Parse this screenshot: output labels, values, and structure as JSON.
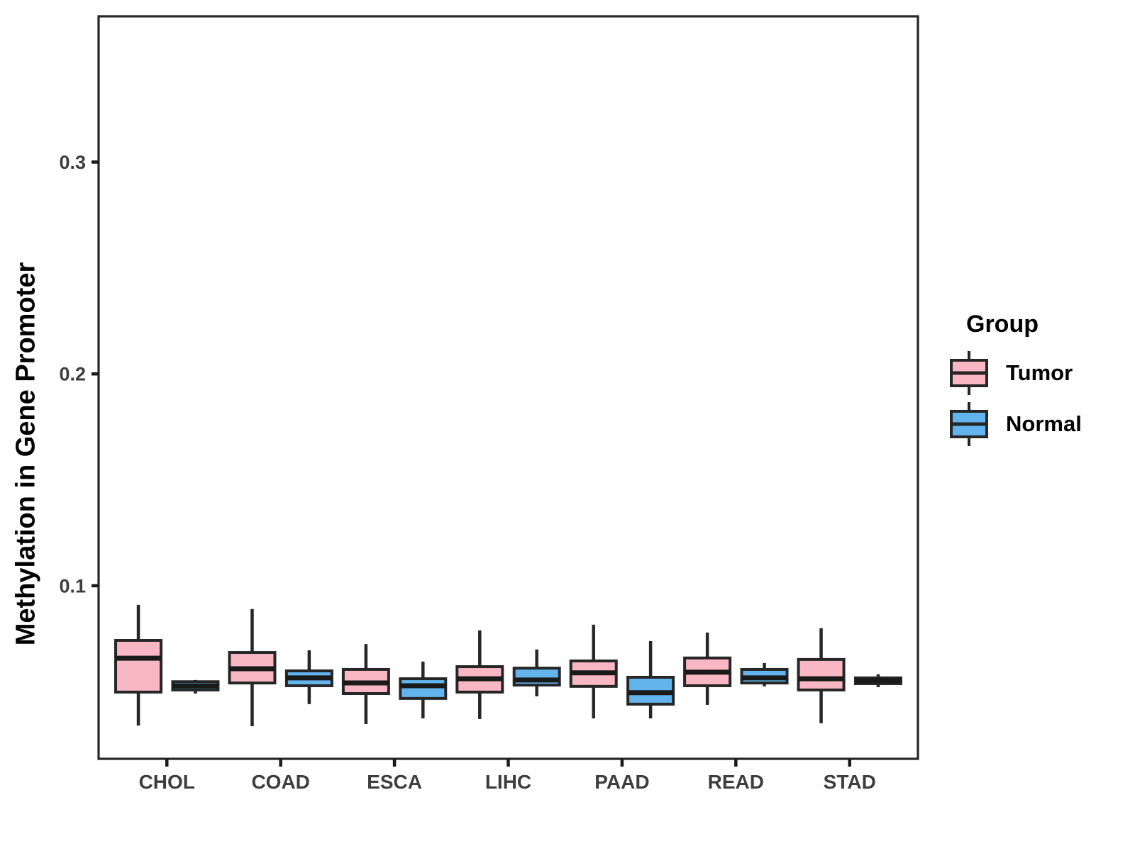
{
  "chart_data": {
    "type": "boxplot",
    "title": "",
    "xlabel": "",
    "ylabel": "Methylation in Gene Promoter",
    "legend_title": "Group",
    "legend_position": "right",
    "grid": false,
    "categories": [
      "CHOL",
      "COAD",
      "ESCA",
      "LIHC",
      "PAAD",
      "READ",
      "STAD"
    ],
    "y_ticks": [
      "0.1",
      "0.2",
      "0.3"
    ],
    "y_tick_values": [
      0.1,
      0.2,
      0.3
    ],
    "ylim": [
      0.0183,
      0.3688
    ],
    "box_stroke": "#262626",
    "median_stroke": "#1a1a1a",
    "tick_label_color": "#3d3d3d",
    "series": [
      {
        "name": "Tumor",
        "fill": "#F9B7C4",
        "boxes": [
          {
            "category": "CHOL",
            "whisker_low": 0.034,
            "q1": 0.0498,
            "median": 0.0658,
            "q3": 0.0742,
            "whisker_high": 0.091
          },
          {
            "category": "COAD",
            "whisker_low": 0.0337,
            "q1": 0.0541,
            "median": 0.0608,
            "q3": 0.0685,
            "whisker_high": 0.089
          },
          {
            "category": "ESCA",
            "whisker_low": 0.0347,
            "q1": 0.0491,
            "median": 0.0541,
            "q3": 0.0605,
            "whisker_high": 0.0725
          },
          {
            "category": "LIHC",
            "whisker_low": 0.0371,
            "q1": 0.0498,
            "median": 0.0561,
            "q3": 0.0618,
            "whisker_high": 0.0789
          },
          {
            "category": "PAAD",
            "whisker_low": 0.0374,
            "q1": 0.0525,
            "median": 0.0589,
            "q3": 0.0645,
            "whisker_high": 0.0816
          },
          {
            "category": "READ",
            "whisker_low": 0.0438,
            "q1": 0.0528,
            "median": 0.0592,
            "q3": 0.0659,
            "whisker_high": 0.0779
          },
          {
            "category": "STAD",
            "whisker_low": 0.0351,
            "q1": 0.0508,
            "median": 0.0561,
            "q3": 0.0652,
            "whisker_high": 0.0799
          }
        ]
      },
      {
        "name": "Normal",
        "fill": "#63B4EC",
        "boxes": [
          {
            "category": "CHOL",
            "whisker_low": 0.0491,
            "q1": 0.0508,
            "median": 0.0527,
            "q3": 0.0547,
            "whisker_high": 0.0555
          },
          {
            "category": "COAD",
            "whisker_low": 0.0441,
            "q1": 0.0528,
            "median": 0.0565,
            "q3": 0.0598,
            "whisker_high": 0.0695
          },
          {
            "category": "ESCA",
            "whisker_low": 0.0374,
            "q1": 0.0468,
            "median": 0.0528,
            "q3": 0.0561,
            "whisker_high": 0.0642
          },
          {
            "category": "LIHC",
            "whisker_low": 0.0478,
            "q1": 0.0531,
            "median": 0.0555,
            "q3": 0.0611,
            "whisker_high": 0.0699
          },
          {
            "category": "PAAD",
            "whisker_low": 0.0374,
            "q1": 0.0441,
            "median": 0.0495,
            "q3": 0.0568,
            "whisker_high": 0.0739
          },
          {
            "category": "READ",
            "whisker_low": 0.0525,
            "q1": 0.0541,
            "median": 0.0565,
            "q3": 0.0605,
            "whisker_high": 0.0635
          },
          {
            "category": "STAD",
            "whisker_low": 0.0521,
            "q1": 0.0538,
            "median": 0.0552,
            "q3": 0.0565,
            "whisker_high": 0.0582
          }
        ]
      }
    ]
  }
}
